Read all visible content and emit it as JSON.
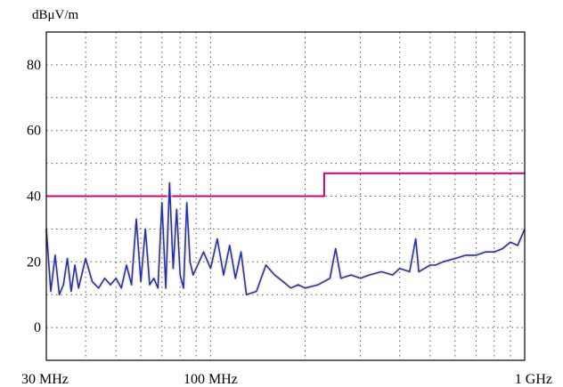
{
  "chart_data": {
    "type": "line",
    "ylabel": "dBμV/m",
    "xscale": "log",
    "xlim": [
      30,
      1000
    ],
    "ylim": [
      -10,
      90
    ],
    "grid": true,
    "x_ticks": [
      {
        "value": 30,
        "label": "30 MHz"
      },
      {
        "value": 100,
        "label": "100 MHz"
      },
      {
        "value": 1000,
        "label": "1 GHz"
      }
    ],
    "y_ticks": [
      {
        "value": 0,
        "label": "0"
      },
      {
        "value": 20,
        "label": "20"
      },
      {
        "value": 40,
        "label": "40"
      },
      {
        "value": 60,
        "label": "60"
      },
      {
        "value": 80,
        "label": "80"
      }
    ],
    "series": [
      {
        "color": "#cc0077",
        "style": "limit",
        "x": [
          30,
          230,
          230,
          1000
        ],
        "y": [
          40,
          40,
          47,
          47
        ]
      },
      {
        "color": "#1c2fc0",
        "style": "trace",
        "x": [
          30,
          31,
          32,
          33,
          34,
          35,
          36,
          37,
          38,
          40,
          42,
          44,
          46,
          48,
          50,
          52,
          54,
          56,
          58,
          60,
          62,
          64,
          66,
          68,
          70,
          72,
          74,
          76,
          78,
          80,
          82,
          84,
          86,
          88,
          90,
          95,
          100,
          105,
          110,
          115,
          120,
          125,
          130,
          140,
          150,
          160,
          170,
          180,
          190,
          200,
          220,
          240,
          250,
          260,
          280,
          300,
          320,
          350,
          380,
          400,
          430,
          450,
          460,
          480,
          500,
          520,
          550,
          600,
          650,
          700,
          750,
          800,
          850,
          900,
          950,
          1000
        ],
        "y": [
          30,
          11,
          22,
          10,
          13,
          21,
          11,
          19,
          12,
          21,
          14,
          12,
          15,
          13,
          15,
          12,
          19,
          13,
          33,
          14,
          30,
          13,
          15,
          12,
          38,
          12,
          44,
          18,
          36,
          16,
          12,
          38,
          20,
          16,
          18,
          23,
          18,
          27,
          16,
          25,
          15,
          23,
          10,
          11,
          19,
          16,
          14,
          12,
          13,
          12,
          13,
          15,
          24,
          15,
          16,
          15,
          16,
          17,
          16,
          18,
          17,
          27,
          17,
          18,
          19,
          19,
          20,
          21,
          22,
          22,
          23,
          23,
          24,
          26,
          25,
          30
        ]
      }
    ]
  }
}
